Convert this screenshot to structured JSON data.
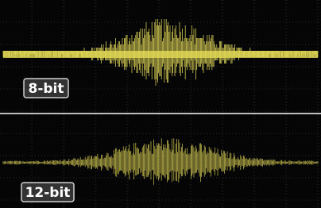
{
  "panels": [
    {
      "label": "8-bit"
    },
    {
      "label": "12-bit"
    }
  ]
}
